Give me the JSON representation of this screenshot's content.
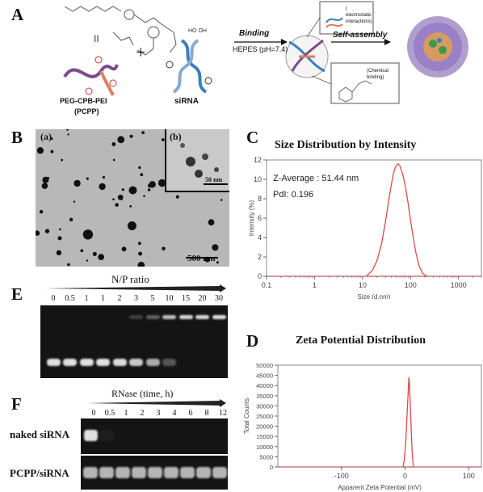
{
  "panels": {
    "A": "A",
    "B": "B",
    "C": "C",
    "D": "D",
    "E": "E",
    "F": "F"
  },
  "panel_a": {
    "pcpp_name": "PEG-CPB-PEI",
    "pcpp_abbr": "(PCPP)",
    "sirna_label": "siRNA",
    "plus": "+",
    "binding_label": "Binding",
    "buffer_label": "HEPES (pH=7.4)",
    "self_assembly_label": "Self-assembly",
    "electrostatic_label": "( electrostatic interactions)",
    "chemical_label": "(Chemical binding)"
  },
  "panel_b": {
    "sub_a": "(a)",
    "sub_b": "(b)",
    "scale_inset": "50 nm",
    "scale_main": "500 nm"
  },
  "chart_data": [
    {
      "id": "C",
      "type": "line",
      "title": "Size Distribution by Intensity",
      "xlabel": "Size (d.nm)",
      "ylabel": "Intensity (%)",
      "xscale": "log",
      "xlim": [
        0.1,
        3000
      ],
      "ylim": [
        0,
        12
      ],
      "xticks": [
        0.1,
        1,
        10,
        100,
        1000
      ],
      "xtick_labels": [
        "0.1",
        "1",
        "10",
        "100",
        "1000"
      ],
      "yticks": [
        0,
        2,
        4,
        6,
        8,
        10,
        12
      ],
      "annotations": [
        "Z-Average : 51.44 nm",
        "PdI: 0.196"
      ],
      "series": [
        {
          "color": "#e04848",
          "x": [
            12,
            16,
            20,
            25,
            30,
            35,
            40,
            45,
            50,
            55,
            60,
            70,
            80,
            90,
            100,
            115,
            130,
            150,
            180,
            220
          ],
          "y": [
            0,
            0.6,
            1.6,
            3.4,
            5.6,
            7.8,
            9.5,
            10.8,
            11.4,
            11.6,
            11.4,
            10.4,
            9.0,
            7.4,
            5.8,
            3.9,
            2.4,
            1.1,
            0.3,
            0
          ]
        }
      ]
    },
    {
      "id": "D",
      "type": "line",
      "title": "Zeta Potential Distribution",
      "xlabel": "Apparent Zeta Potential (mV)",
      "ylabel": "Total Counts",
      "xlim": [
        -200,
        120
      ],
      "ylim": [
        0,
        50000
      ],
      "xticks": [
        -100,
        0,
        100
      ],
      "xtick_labels": [
        "-100",
        "0",
        "100"
      ],
      "yticks": [
        0,
        5000,
        10000,
        15000,
        20000,
        25000,
        30000,
        35000,
        40000,
        45000,
        50000
      ],
      "series": [
        {
          "color": "#e04848",
          "x": [
            -3,
            -1,
            1,
            3,
            5,
            6,
            7,
            9,
            11,
            13
          ],
          "y": [
            0,
            4000,
            12000,
            25000,
            37000,
            44000,
            40000,
            24000,
            8000,
            0
          ]
        }
      ]
    }
  ],
  "panel_e": {
    "title": "N/P ratio",
    "ratios": [
      "0",
      "0.5",
      "1",
      "1",
      "2",
      "3",
      "5",
      "10",
      "15",
      "20",
      "30"
    ],
    "free_band_intensity": [
      0.95,
      0.95,
      0.95,
      0.95,
      0.92,
      0.85,
      0.7,
      0.3,
      0,
      0,
      0
    ],
    "well_band_intensity": [
      0,
      0,
      0,
      0,
      0,
      0.2,
      0.35,
      0.8,
      0.9,
      0.9,
      0.95
    ]
  },
  "panel_f": {
    "title": "RNase (time, h)",
    "times": [
      "0",
      "0.5",
      "1",
      "2",
      "3",
      "4",
      "6",
      "8",
      "12"
    ],
    "row1_label": "naked siRNA",
    "row2_label": "PCPP/siRNA",
    "row1_intensity": [
      0.95,
      0.05,
      0,
      0,
      0,
      0,
      0,
      0,
      0
    ],
    "row2_intensity": [
      0.75,
      0.75,
      0.75,
      0.75,
      0.75,
      0.75,
      0.75,
      0.75,
      0.75
    ]
  }
}
